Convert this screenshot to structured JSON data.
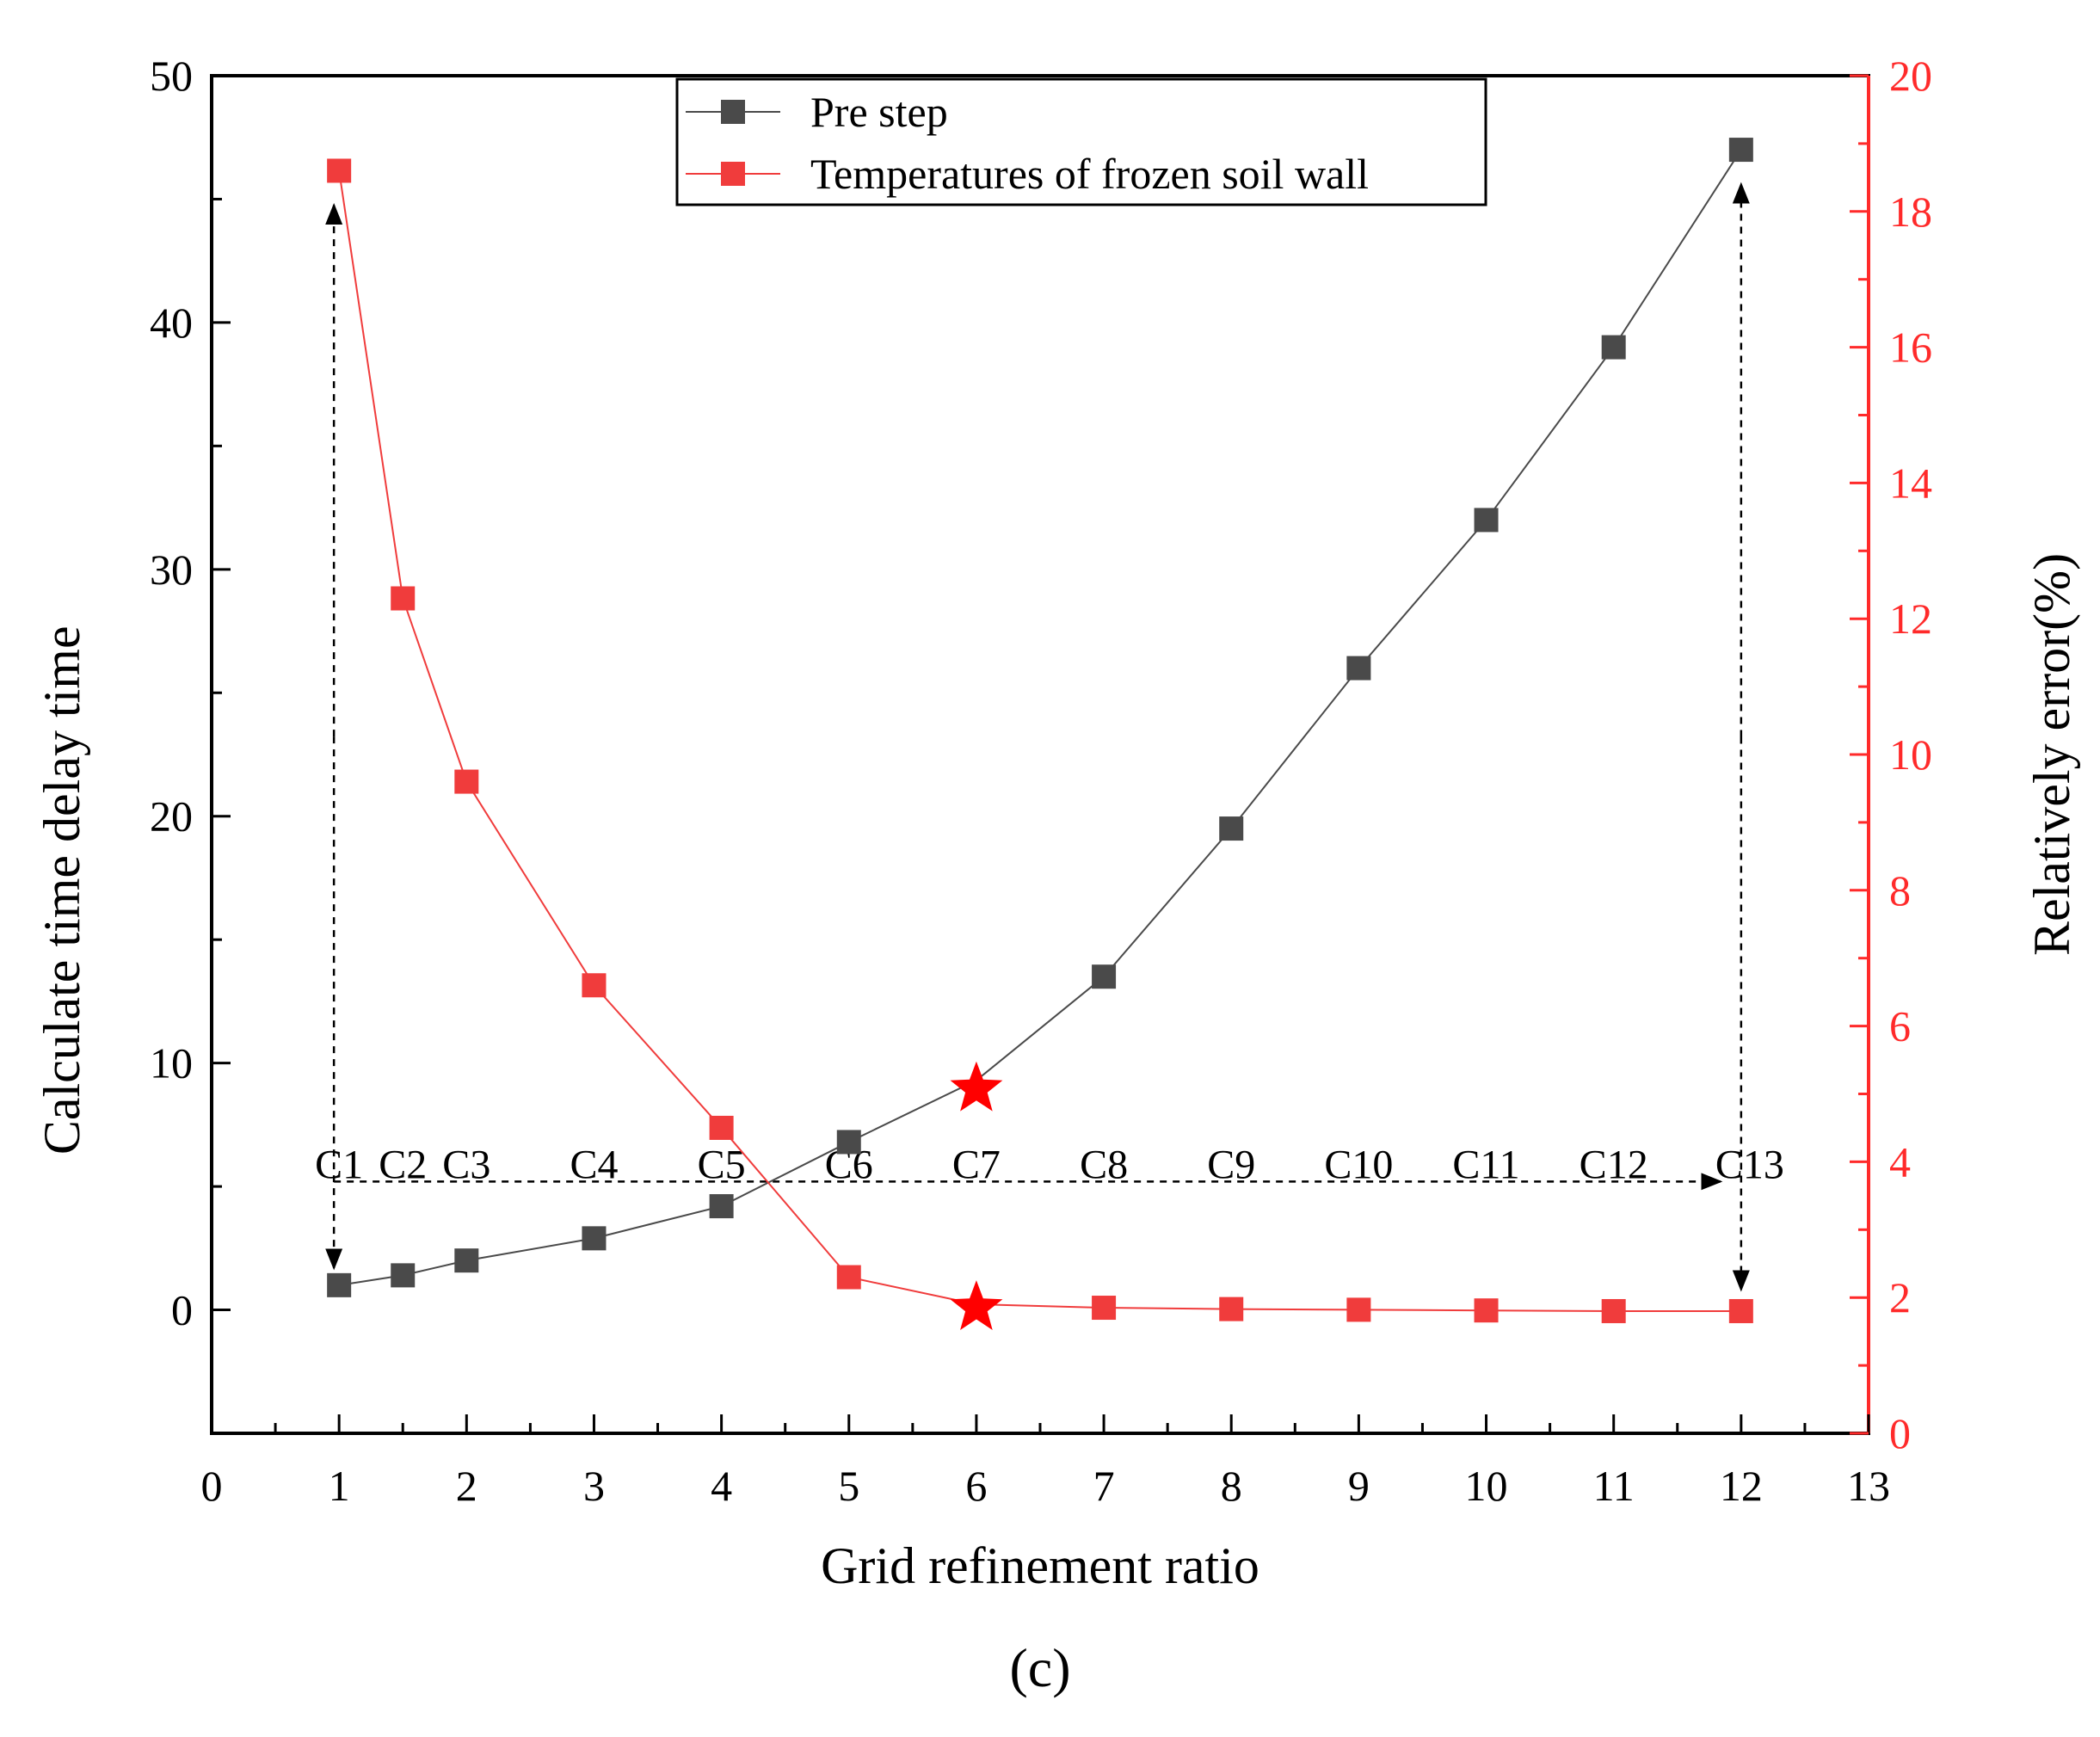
{
  "chart_data": {
    "type": "line",
    "xlabel": "Grid refinement ratio",
    "ylabel": "Calculate time delay time",
    "y2label": "Relatively error(%)",
    "panel_label": "(c)",
    "xlim": [
      0,
      13
    ],
    "ylim": [
      -5,
      50
    ],
    "y2lim": [
      0,
      20
    ],
    "x_ticks": [
      0,
      1,
      2,
      3,
      4,
      5,
      6,
      7,
      8,
      9,
      10,
      11,
      12,
      13
    ],
    "y_ticks": [
      0,
      10,
      20,
      30,
      40,
      50
    ],
    "y2_ticks": [
      0,
      2,
      4,
      6,
      8,
      10,
      12,
      14,
      16,
      18,
      20
    ],
    "x": [
      1,
      1.5,
      2,
      3,
      4,
      5,
      6,
      7,
      8,
      9,
      10,
      11,
      12
    ],
    "cell_labels": [
      "C1",
      "C2",
      "C3",
      "C4",
      "C5",
      "C6",
      "C7",
      "C8",
      "C9",
      "C10",
      "C11",
      "C12",
      "C13"
    ],
    "series": [
      {
        "name": "Pre step",
        "axis": "left",
        "color": "#4a4a4a",
        "values": [
          1.0,
          1.4,
          2.0,
          2.9,
          4.2,
          6.8,
          9.3,
          13.5,
          19.5,
          26.0,
          32.0,
          39.0,
          47.0
        ]
      },
      {
        "name": "Temperatures of frozen soil wall",
        "axis": "right",
        "color": "#f03c3c",
        "values": [
          18.6,
          12.3,
          9.6,
          6.6,
          4.5,
          2.3,
          1.9,
          1.85,
          1.83,
          1.82,
          1.81,
          1.8,
          1.8
        ]
      }
    ],
    "highlight": {
      "x": 6,
      "label": "C7",
      "left_value": 9.3,
      "right_value": 1.9,
      "color": "#ff0000"
    },
    "legend_position": "top-center"
  }
}
